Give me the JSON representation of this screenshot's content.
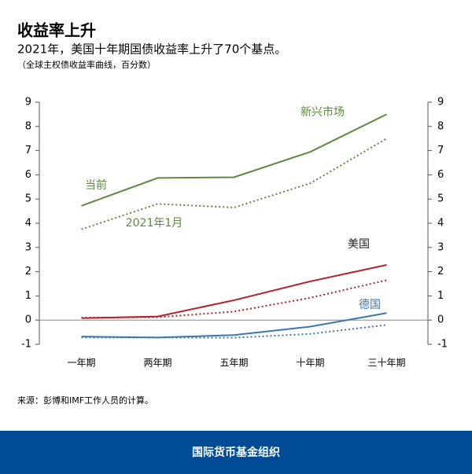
{
  "chart_data": {
    "type": "line",
    "title": "收益率上升",
    "subtitle": "2021年，美国十年期国债收益率上升了70个基点。",
    "note": "（全球主权债收益率曲线，百分数）",
    "source": "来源：彭博和IMF工作人员的计算。",
    "footer": "国际货币基金组织",
    "categories": [
      "一年期",
      "两年期",
      "五年期",
      "十年期",
      "三十年期"
    ],
    "ylim": [
      -1,
      9
    ],
    "yticks": [
      -1,
      0,
      1,
      2,
      3,
      4,
      5,
      6,
      7,
      8,
      9
    ],
    "styles": [
      {
        "label": "当前",
        "dash": "none"
      },
      {
        "label": "2021年1月",
        "dash": "2 3"
      }
    ],
    "series": [
      {
        "name": "新兴市场",
        "color": "#5b8a3c",
        "lines": [
          [
            4.72,
            5.87,
            5.9,
            6.95,
            8.5
          ],
          [
            3.75,
            4.8,
            4.65,
            5.65,
            7.5
          ]
        ]
      },
      {
        "name": "美国",
        "color": "#b3202a",
        "lines": [
          [
            0.08,
            0.15,
            0.82,
            1.6,
            2.28
          ],
          [
            0.1,
            0.12,
            0.35,
            0.92,
            1.65
          ]
        ]
      },
      {
        "name": "德国",
        "color": "#3a78b0",
        "lines": [
          [
            -0.68,
            -0.72,
            -0.62,
            -0.27,
            0.29
          ],
          [
            -0.72,
            -0.72,
            -0.73,
            -0.57,
            -0.2
          ]
        ]
      }
    ]
  }
}
